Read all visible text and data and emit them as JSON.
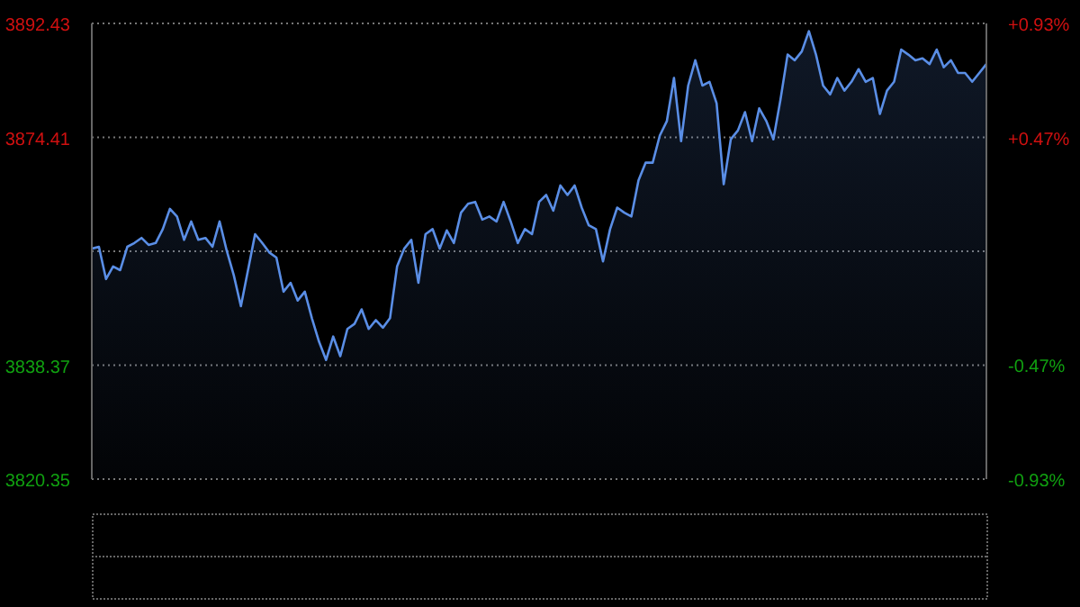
{
  "chart_data": {
    "type": "area",
    "categories": [
      null,
      null,
      null,
      null,
      null,
      null,
      null,
      null,
      null,
      null,
      null,
      null,
      null,
      null,
      null,
      null,
      null,
      null,
      null,
      null,
      null,
      null,
      null,
      null,
      null,
      null,
      null,
      null,
      null,
      null,
      null,
      null,
      null,
      null,
      null,
      null,
      null,
      null,
      null,
      null,
      null,
      null,
      null,
      null,
      null,
      null,
      null,
      null,
      null,
      null,
      null,
      null,
      null,
      null,
      null,
      null,
      null,
      null,
      null,
      null,
      null,
      null,
      null,
      null,
      null,
      null,
      null,
      null,
      null,
      null,
      null,
      null,
      null,
      null,
      null,
      null,
      null,
      null,
      null,
      null,
      null,
      null,
      null,
      null,
      null,
      null,
      null,
      null,
      null,
      null,
      null,
      null,
      null,
      null,
      null,
      null,
      null,
      null,
      null,
      null,
      null,
      null,
      null,
      null,
      null,
      null,
      null,
      null,
      null,
      null,
      null,
      null,
      null,
      null,
      null,
      null,
      null,
      null,
      null,
      null,
      null,
      null,
      null,
      null,
      null,
      null,
      null
    ],
    "series": [
      {
        "color": "#5a8ee6",
        "values": [
          3856.8,
          3857.1,
          3852.0,
          3854.0,
          3853.4,
          3857.1,
          3857.7,
          3858.5,
          3857.4,
          3857.7,
          3859.9,
          3863.1,
          3861.9,
          3858.2,
          3861.1,
          3858.2,
          3858.5,
          3857.1,
          3861.1,
          3856.5,
          3852.6,
          3847.7,
          3853.4,
          3859.1,
          3857.7,
          3856.2,
          3855.4,
          3850.0,
          3851.4,
          3848.6,
          3850.0,
          3845.8,
          3842.1,
          3839.2,
          3842.9,
          3839.8,
          3844.1,
          3844.9,
          3847.2,
          3844.1,
          3845.5,
          3844.3,
          3845.8,
          3854.0,
          3856.8,
          3858.2,
          3851.4,
          3859.1,
          3859.9,
          3856.8,
          3859.7,
          3857.7,
          3862.5,
          3863.9,
          3864.2,
          3861.4,
          3861.9,
          3861.1,
          3864.2,
          3861.1,
          3857.7,
          3859.9,
          3859.1,
          3864.2,
          3865.3,
          3862.8,
          3866.8,
          3865.3,
          3866.8,
          3863.3,
          3860.5,
          3859.9,
          3854.8,
          3859.9,
          3863.3,
          3862.5,
          3861.9,
          3867.6,
          3870.4,
          3870.4,
          3874.7,
          3877.0,
          3883.8,
          3873.8,
          3882.6,
          3886.6,
          3882.6,
          3883.2,
          3879.8,
          3867.0,
          3874.1,
          3875.5,
          3878.4,
          3873.8,
          3879.0,
          3877.0,
          3874.1,
          3880.4,
          3887.5,
          3886.6,
          3888.0,
          3891.2,
          3887.5,
          3882.6,
          3881.2,
          3883.8,
          3881.8,
          3883.2,
          3885.2,
          3883.2,
          3883.8,
          3878.1,
          3881.8,
          3883.2,
          3888.3,
          3887.5,
          3886.6,
          3886.9,
          3886.0,
          3888.3,
          3885.5,
          3886.6,
          3884.6,
          3884.6,
          3883.2,
          3884.6,
          3886.0
        ]
      }
    ],
    "ylim": [
      3820.35,
      3892.43
    ],
    "yticks": [
      3820.35,
      3838.37,
      {
        "value": 3856.39,
        "label": null
      },
      3874.41,
      3892.43
    ],
    "y2lim": [
      -0.935,
      0.935
    ],
    "y2ticks": [
      {
        "value": -0.935,
        "label": "-0.93%"
      },
      {
        "value": -0.467,
        "label": "-0.47%"
      },
      {
        "value": 0.467,
        "label": "+0.47%"
      },
      {
        "value": 0.935,
        "label": "+0.93%"
      }
    ],
    "grid": "y"
  }
}
